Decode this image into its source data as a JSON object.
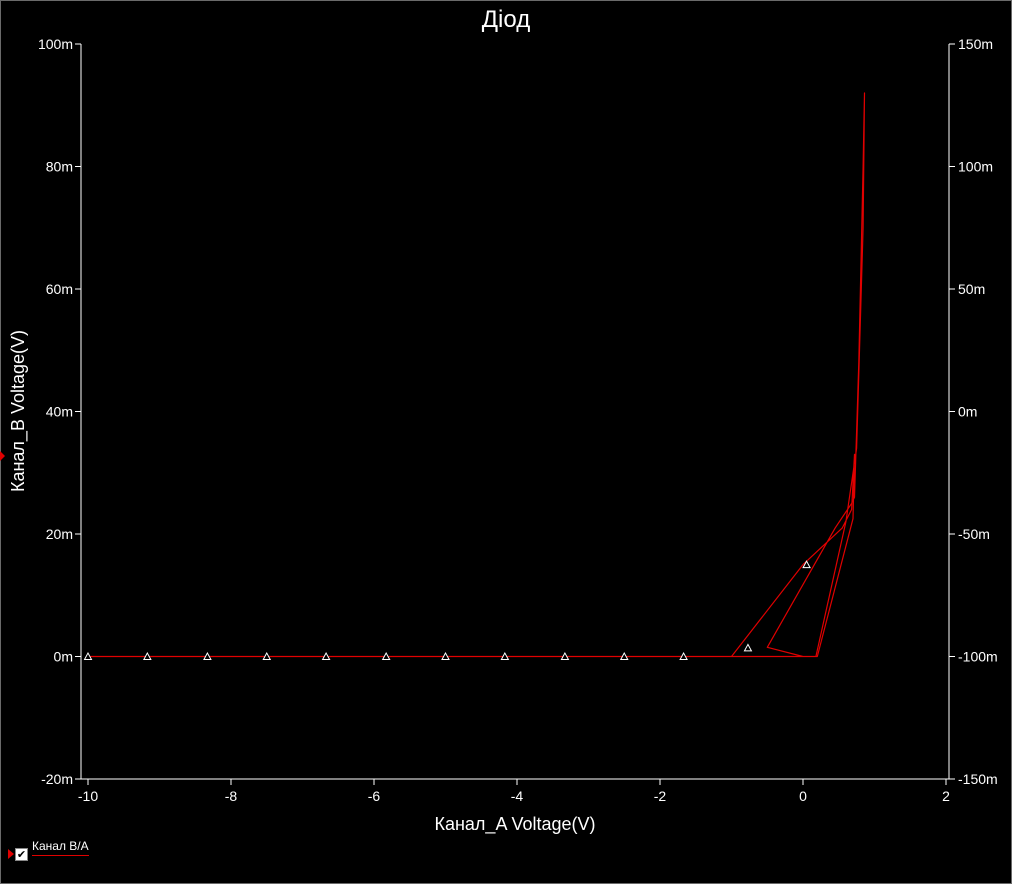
{
  "chart_data": {
    "type": "line",
    "title": "Діод",
    "xlabel": "Канал_A Voltage(V)",
    "ylabel": "Канал_B Voltage(V)",
    "xlim": [
      -10,
      2
    ],
    "ylim": [
      -20,
      100
    ],
    "y2lim": [
      -150,
      150
    ],
    "x_ticks": [
      -10,
      -8,
      -6,
      -4,
      -2,
      0,
      2
    ],
    "x_tick_labels": [
      "-10",
      "-8",
      "-6",
      "-4",
      "-2",
      "0",
      "2"
    ],
    "y_ticks": [
      -20,
      0,
      20,
      40,
      60,
      80,
      100
    ],
    "y_tick_labels": [
      "-20m",
      "0m",
      "20m",
      "40m",
      "60m",
      "80m",
      "100m"
    ],
    "y2_ticks": [
      -150,
      -100,
      -50,
      0,
      50,
      100,
      150
    ],
    "y2_tick_labels": [
      "-150m",
      "-100m",
      "-50m",
      "0m",
      "50m",
      "100m",
      "150m"
    ],
    "grid": false,
    "legend_position": "bottom-left",
    "series": [
      {
        "name": "Канал B/A",
        "color": "#e00000",
        "x": [
          -10,
          -8,
          -6,
          -4,
          -2,
          -1.8,
          -1.0,
          0.0,
          0.55,
          0.68,
          0.72,
          0.7,
          0.2,
          0.0,
          -0.5,
          0.45,
          0.68,
          0.72,
          0.78,
          0.84,
          0.86,
          0.84,
          0.75,
          0.6,
          0.18,
          0.0,
          -1.1,
          -1.8
        ],
        "y": [
          0,
          0,
          0,
          0,
          0,
          0,
          0,
          15,
          21,
          24,
          33,
          22.5,
          0,
          0,
          1.5,
          21,
          25,
          26,
          48,
          80,
          92,
          70,
          34,
          22,
          0,
          0,
          0,
          0
        ]
      }
    ],
    "markers": {
      "symbol": "triangle",
      "x": [
        -10,
        -9.17,
        -8.33,
        -7.5,
        -6.67,
        -5.83,
        -5.0,
        -4.17,
        -3.33,
        -2.5,
        -1.67,
        -0.77,
        0.05
      ],
      "y": [
        0,
        0,
        0,
        0,
        0,
        0,
        0,
        0,
        0,
        0,
        0,
        1.4,
        15
      ]
    }
  },
  "legend": {
    "label": "Канал B/A",
    "checked": true,
    "check_glyph": "✔"
  },
  "colors": {
    "background": "#000000",
    "axes": "#ffffff",
    "trace": "#e00000"
  }
}
